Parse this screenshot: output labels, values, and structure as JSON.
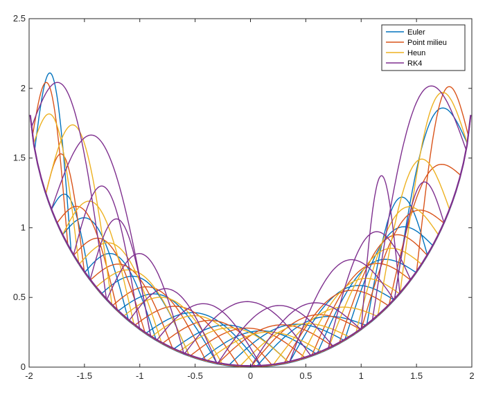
{
  "chart_data": {
    "type": "line",
    "title": "",
    "xlabel": "",
    "ylabel": "",
    "xlim": [
      -2,
      2
    ],
    "ylim": [
      0,
      2.5
    ],
    "grid": false,
    "legend_position": "top-right",
    "x_ticks": [
      {
        "value": -2,
        "label": "-2"
      },
      {
        "value": -1.5,
        "label": "-1.5"
      },
      {
        "value": -1,
        "label": "-1"
      },
      {
        "value": -0.5,
        "label": "-0.5"
      },
      {
        "value": 0,
        "label": "0"
      },
      {
        "value": 0.5,
        "label": "0.5"
      },
      {
        "value": 1,
        "label": "1"
      },
      {
        "value": 1.5,
        "label": "1.5"
      },
      {
        "value": 2,
        "label": "2"
      }
    ],
    "y_ticks": [
      {
        "value": 0,
        "label": "0"
      },
      {
        "value": 0.5,
        "label": "0.5"
      },
      {
        "value": 1,
        "label": "1"
      },
      {
        "value": 1.5,
        "label": "1.5"
      },
      {
        "value": 2,
        "label": "2"
      },
      {
        "value": 2.5,
        "label": "2.5"
      }
    ],
    "bowl": "y = 2 - sqrt(4 - x^2)",
    "series": [
      {
        "name": "Euler",
        "color": "#0072BD",
        "arcs": [
          {
            "x0": -1.95,
            "x1": -1.62,
            "h": 2.08
          },
          {
            "x0": -1.8,
            "x1": -1.45,
            "h": 1.2
          },
          {
            "x0": -1.7,
            "x1": -1.1,
            "h": 1.02
          },
          {
            "x0": -1.5,
            "x1": -0.85,
            "h": 0.78
          },
          {
            "x0": -1.35,
            "x1": -0.55,
            "h": 0.62
          },
          {
            "x0": -1.2,
            "x1": -0.3,
            "h": 0.5
          },
          {
            "x0": -0.95,
            "x1": 0.1,
            "h": 0.38
          },
          {
            "x0": -0.7,
            "x1": 0.35,
            "h": 0.3
          },
          {
            "x0": -0.45,
            "x1": 0.6,
            "h": 0.26
          },
          {
            "x0": -0.2,
            "x1": 0.85,
            "h": 0.3
          },
          {
            "x0": 0.05,
            "x1": 1.05,
            "h": 0.34
          },
          {
            "x0": 0.35,
            "x1": 1.3,
            "h": 0.55
          },
          {
            "x0": 0.6,
            "x1": 1.5,
            "h": 0.72
          },
          {
            "x0": 0.85,
            "x1": 1.65,
            "h": 0.95
          },
          {
            "x0": 1.05,
            "x1": 1.6,
            "h": 1.2
          },
          {
            "x0": 1.3,
            "x1": 1.96,
            "h": 1.77
          }
        ]
      },
      {
        "name": "Point milieu",
        "color": "#D95319",
        "arcs": [
          {
            "x0": -1.97,
            "x1": -1.65,
            "h": 2.0
          },
          {
            "x0": -1.85,
            "x1": -1.5,
            "h": 1.5
          },
          {
            "x0": -1.75,
            "x1": -1.2,
            "h": 1.1
          },
          {
            "x0": -1.6,
            "x1": -0.95,
            "h": 0.88
          },
          {
            "x0": -1.45,
            "x1": -0.7,
            "h": 0.7
          },
          {
            "x0": -1.25,
            "x1": -0.4,
            "h": 0.55
          },
          {
            "x0": -1.05,
            "x1": -0.1,
            "h": 0.42
          },
          {
            "x0": -0.8,
            "x1": 0.2,
            "h": 0.33
          },
          {
            "x0": -0.55,
            "x1": 0.5,
            "h": 0.28
          },
          {
            "x0": -0.3,
            "x1": 0.75,
            "h": 0.3
          },
          {
            "x0": 0.0,
            "x1": 1.0,
            "h": 0.36
          },
          {
            "x0": 0.3,
            "x1": 1.25,
            "h": 0.52
          },
          {
            "x0": 0.55,
            "x1": 1.45,
            "h": 0.7
          },
          {
            "x0": 0.8,
            "x1": 1.6,
            "h": 0.9
          },
          {
            "x0": 1.0,
            "x1": 1.75,
            "h": 1.05
          },
          {
            "x0": 1.25,
            "x1": 1.9,
            "h": 1.35
          },
          {
            "x0": 1.5,
            "x1": 1.97,
            "h": 1.95
          }
        ]
      },
      {
        "name": "Heun",
        "color": "#EDB120",
        "arcs": [
          {
            "x0": -1.96,
            "x1": -1.55,
            "h": 1.75
          },
          {
            "x0": -1.85,
            "x1": -1.25,
            "h": 1.7
          },
          {
            "x0": -1.7,
            "x1": -1.05,
            "h": 1.15
          },
          {
            "x0": -1.55,
            "x1": -0.8,
            "h": 0.85
          },
          {
            "x0": -1.4,
            "x1": -0.55,
            "h": 0.66
          },
          {
            "x0": -1.15,
            "x1": -0.25,
            "h": 0.48
          },
          {
            "x0": -0.9,
            "x1": 0.05,
            "h": 0.36
          },
          {
            "x0": -0.65,
            "x1": 0.35,
            "h": 0.28
          },
          {
            "x0": -0.4,
            "x1": 0.65,
            "h": 0.25
          },
          {
            "x0": -0.1,
            "x1": 0.9,
            "h": 0.3
          },
          {
            "x0": 0.2,
            "x1": 1.15,
            "h": 0.4
          },
          {
            "x0": 0.45,
            "x1": 1.35,
            "h": 0.6
          },
          {
            "x0": 0.7,
            "x1": 1.55,
            "h": 0.8
          },
          {
            "x0": 0.95,
            "x1": 1.7,
            "h": 1.1
          },
          {
            "x0": 1.15,
            "x1": 1.8,
            "h": 1.45
          },
          {
            "x0": 1.35,
            "x1": 1.96,
            "h": 1.9
          }
        ]
      },
      {
        "name": "RK4",
        "color": "#7E2F8E",
        "arcs": [
          {
            "x0": -1.98,
            "x1": -1.3,
            "h": 1.95
          },
          {
            "x0": -1.8,
            "x1": -0.9,
            "h": 1.62
          },
          {
            "x0": -1.6,
            "x1": -1.0,
            "h": 1.28
          },
          {
            "x0": -1.45,
            "x1": -0.9,
            "h": 1.05
          },
          {
            "x0": -1.3,
            "x1": -0.6,
            "h": 0.8
          },
          {
            "x0": -1.1,
            "x1": -0.3,
            "h": 0.55
          },
          {
            "x0": -0.85,
            "x1": 0.1,
            "h": 0.45
          },
          {
            "x0": -0.6,
            "x1": 0.55,
            "h": 0.47
          },
          {
            "x0": -0.3,
            "x1": 0.75,
            "h": 0.44
          },
          {
            "x0": 0.0,
            "x1": 1.0,
            "h": 0.45
          },
          {
            "x0": 0.35,
            "x1": 1.3,
            "h": 0.75
          },
          {
            "x0": 0.7,
            "x1": 1.45,
            "h": 0.95
          },
          {
            "x0": 1.0,
            "x1": 1.35,
            "h": 1.37
          },
          {
            "x0": 1.1,
            "x1": 1.95,
            "h": 1.94
          },
          {
            "x0": 1.3,
            "x1": 1.75,
            "h": 1.3
          }
        ]
      }
    ]
  }
}
